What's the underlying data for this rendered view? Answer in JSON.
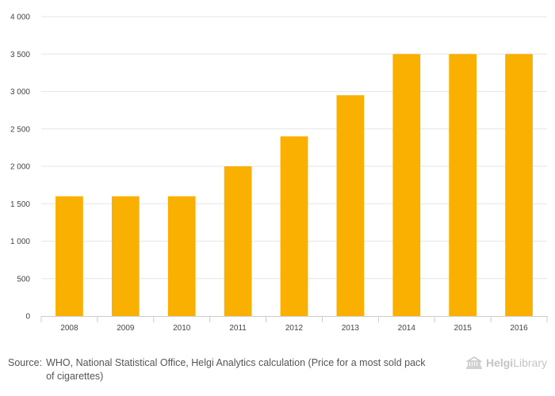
{
  "chart_data": {
    "type": "bar",
    "categories": [
      "2008",
      "2009",
      "2010",
      "2011",
      "2012",
      "2013",
      "2014",
      "2015",
      "2016"
    ],
    "values": [
      1600,
      1600,
      1600,
      2000,
      2400,
      2950,
      3500,
      3500,
      3500
    ],
    "title": "",
    "xlabel": "",
    "ylabel": "",
    "ylim": [
      0,
      4000
    ],
    "yticks": [
      0,
      500,
      1000,
      1500,
      2000,
      2500,
      3000,
      3500,
      4000
    ],
    "ytick_labels": [
      "0",
      "500",
      "1 000",
      "1 500",
      "2 000",
      "2 500",
      "3 000",
      "3 500",
      "4 000"
    ],
    "grid": true,
    "bar_color": "#f9b000",
    "grid_color": "#e6e6e6",
    "axis_color": "#cccccc"
  },
  "footer": {
    "source_prefix": "Source:",
    "source_text": "WHO, National Statistical Office, Helgi Analytics calculation (Price for a most sold pack of cigarettes)"
  },
  "brand": {
    "name_part1": "Helgi",
    "name_part2": "Library",
    "icon": "library-building-icon"
  }
}
